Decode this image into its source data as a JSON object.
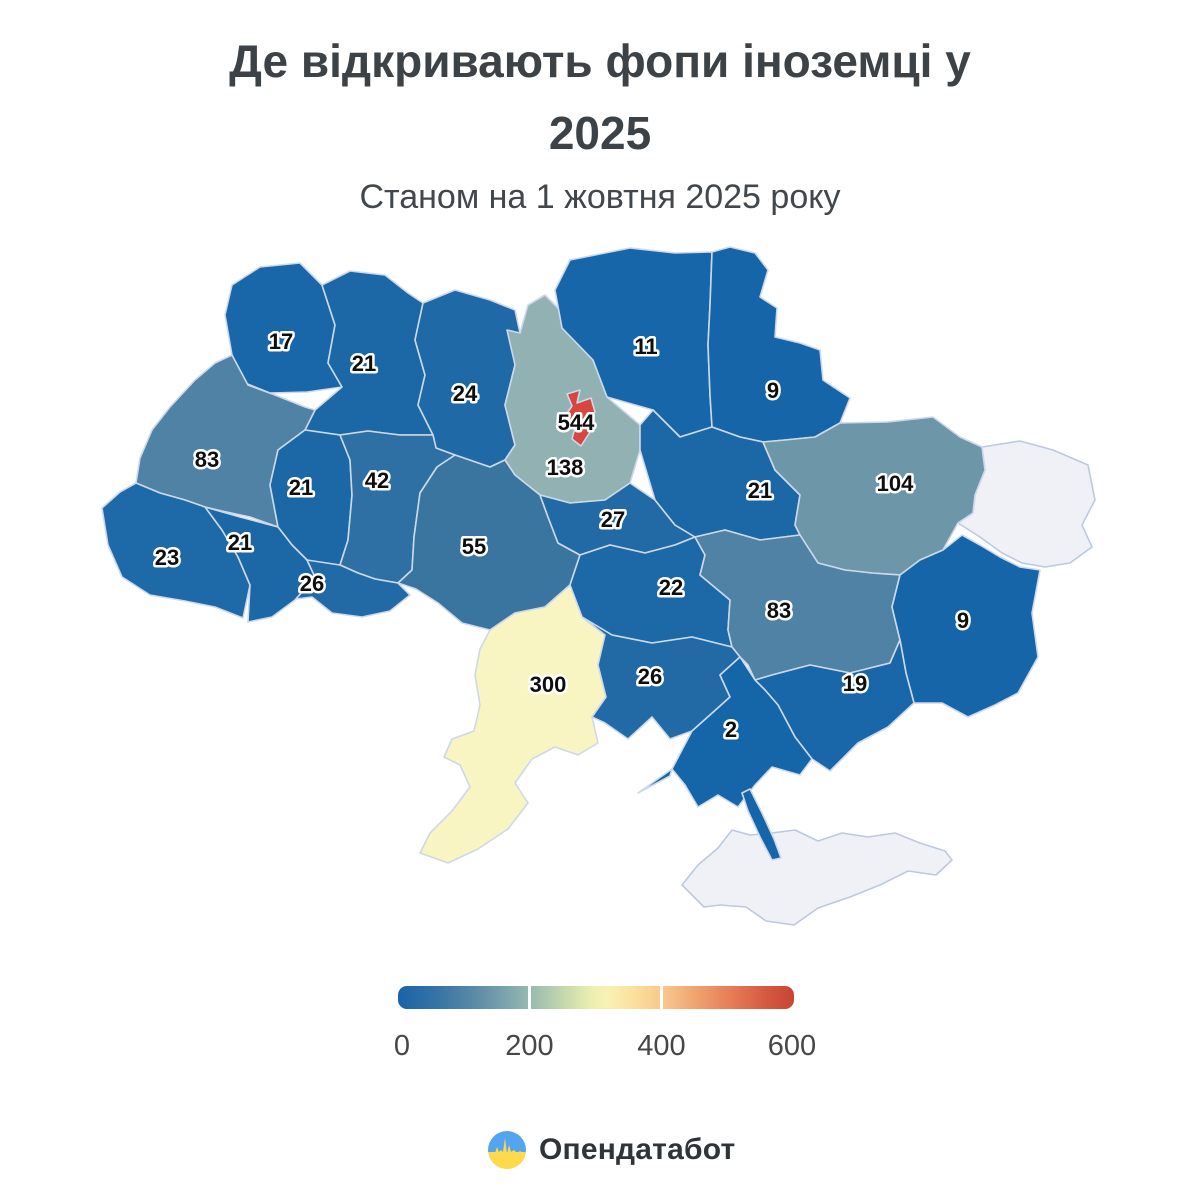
{
  "header": {
    "title_line1": "Де відкривають фопи іноземці у",
    "title_line2": "2025",
    "subtitle": "Станом на 1 жовтня 2025 року"
  },
  "chart_data": {
    "type": "heatmap",
    "subtype": "choropleth-map-ukraine",
    "title": "Де відкривають фопи іноземці у 2025",
    "subtitle": "Станом на 1 жовтня 2025 року",
    "value_range": [
      0,
      600
    ],
    "regions": [
      {
        "id": "volyn",
        "value": "17",
        "fill": "#1967a8"
      },
      {
        "id": "rivne",
        "value": "21",
        "fill": "#1c68a7"
      },
      {
        "id": "zhytomyr",
        "value": "24",
        "fill": "#1f69a6"
      },
      {
        "id": "chernihiv",
        "value": "11",
        "fill": "#1766a9"
      },
      {
        "id": "sumy",
        "value": "9",
        "fill": "#1665a9"
      },
      {
        "id": "lviv",
        "value": "83",
        "fill": "#4f82a4"
      },
      {
        "id": "ternopil",
        "value": "21",
        "fill": "#1c68a7"
      },
      {
        "id": "khmelnytskyi",
        "value": "42",
        "fill": "#2e70a3"
      },
      {
        "id": "kyiv-oblast",
        "value": "138",
        "fill": "#92b1b2"
      },
      {
        "id": "kyiv-city",
        "value": "544",
        "fill": "#d6483f"
      },
      {
        "id": "poltava",
        "value": "21",
        "fill": "#1c68a7"
      },
      {
        "id": "kharkiv",
        "value": "104",
        "fill": "#6e96a9"
      },
      {
        "id": "zakarpattia",
        "value": "23",
        "fill": "#1e69a7"
      },
      {
        "id": "ivano-frankivsk",
        "value": "21",
        "fill": "#1c68a7"
      },
      {
        "id": "chernivtsi",
        "value": "26",
        "fill": "#216aa6"
      },
      {
        "id": "vinnytsia",
        "value": "55",
        "fill": "#3a75a0"
      },
      {
        "id": "cherkasy",
        "value": "27",
        "fill": "#226aa5"
      },
      {
        "id": "kirovohrad",
        "value": "22",
        "fill": "#1d68a7"
      },
      {
        "id": "dnipro",
        "value": "83",
        "fill": "#4f82a4"
      },
      {
        "id": "donetsk",
        "value": "9",
        "fill": "#1665a9"
      },
      {
        "id": "odesa",
        "value": "300",
        "fill": "#f8f5c2"
      },
      {
        "id": "mykolaiv",
        "value": "26",
        "fill": "#216aa6"
      },
      {
        "id": "kherson",
        "value": "2",
        "fill": "#1565a9"
      },
      {
        "id": "zaporizhzhia",
        "value": "19",
        "fill": "#1967a8"
      }
    ],
    "no_data_regions": [
      {
        "id": "luhansk",
        "fill": "#eff1f6"
      },
      {
        "id": "crimea",
        "fill": "#eff1f6"
      }
    ]
  },
  "legend": {
    "tick_labels": [
      "0",
      "200",
      "400",
      "600"
    ],
    "gradient_stops": [
      {
        "p": 0.0,
        "c": "#1a63a8"
      },
      {
        "p": 0.1,
        "c": "#3674a5"
      },
      {
        "p": 0.2,
        "c": "#5d8ca7"
      },
      {
        "p": 0.29,
        "c": "#84aaae"
      },
      {
        "p": 0.36,
        "c": "#a6c3b0"
      },
      {
        "p": 0.43,
        "c": "#cbdcae"
      },
      {
        "p": 0.49,
        "c": "#ecefb1"
      },
      {
        "p": 0.53,
        "c": "#f8f1b4"
      },
      {
        "p": 0.6,
        "c": "#fbdf9d"
      },
      {
        "p": 0.68,
        "c": "#f7c388"
      },
      {
        "p": 0.76,
        "c": "#f0a06d"
      },
      {
        "p": 0.85,
        "c": "#e47954"
      },
      {
        "p": 0.93,
        "c": "#d55a41"
      },
      {
        "p": 1.0,
        "c": "#c94433"
      }
    ]
  },
  "footer": {
    "brand": "Опендатабот"
  }
}
